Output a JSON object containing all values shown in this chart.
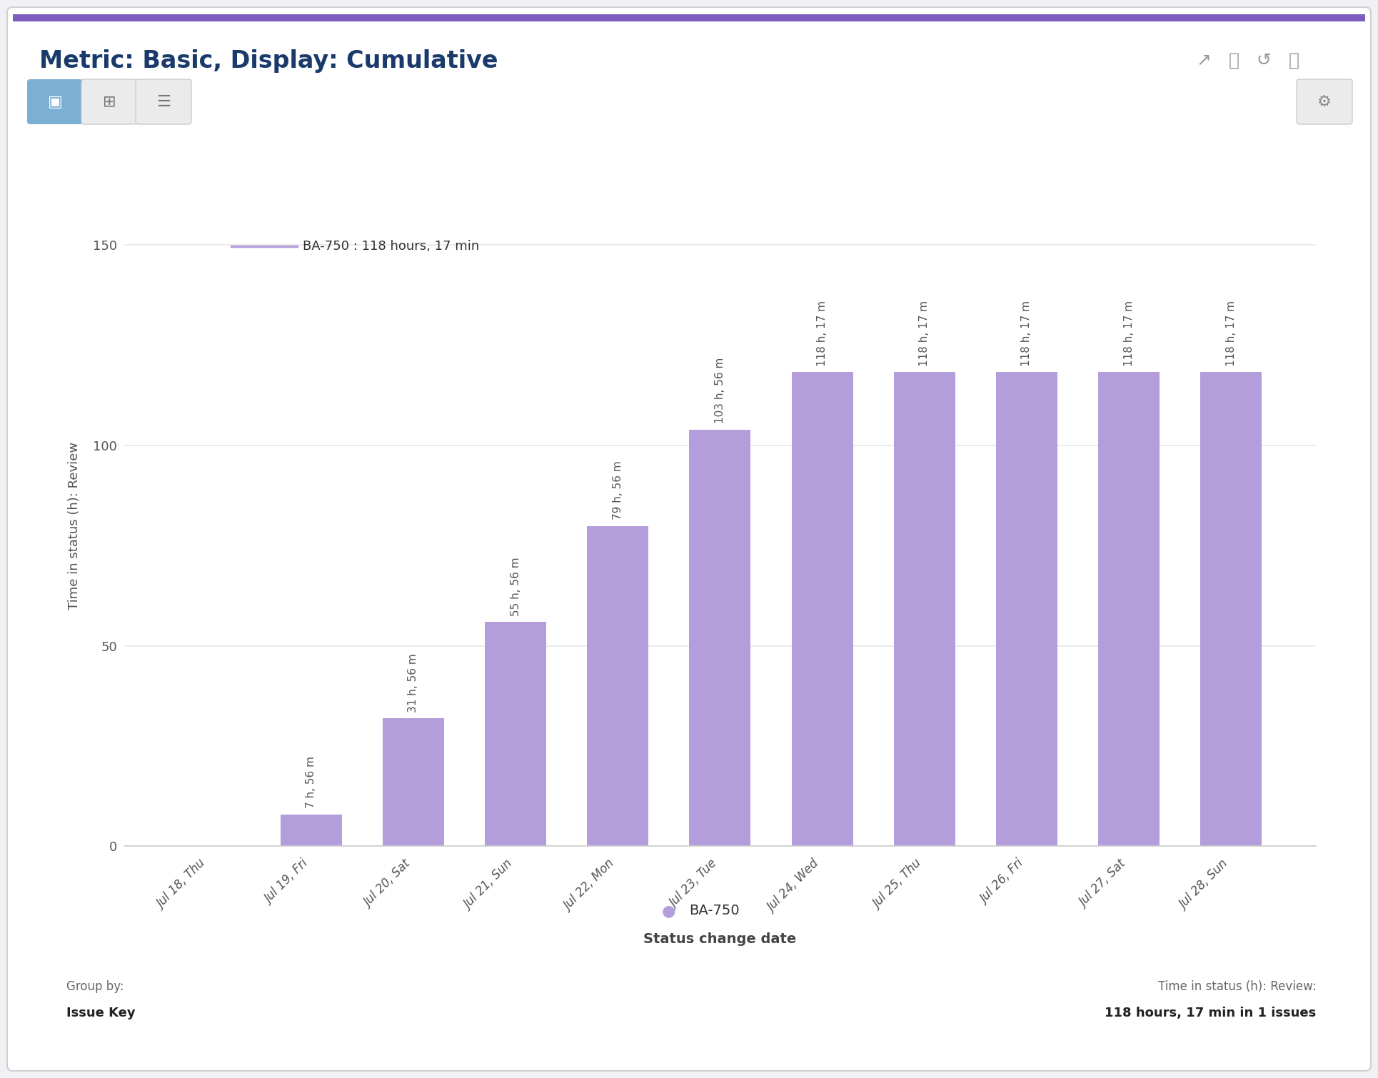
{
  "title": "Metric: Basic, Display: Cumulative",
  "title_color": "#1a3a6b",
  "title_fontsize": 24,
  "categories": [
    "Jul 18, Thu",
    "Jul 19, Fri",
    "Jul 20, Sat",
    "Jul 21, Sun",
    "Jul 22, Mon",
    "Jul 23, Tue",
    "Jul 24, Wed",
    "Jul 25, Thu",
    "Jul 26, Fri",
    "Jul 27, Sat",
    "Jul 28, Sun"
  ],
  "values": [
    0,
    7.933,
    31.933,
    55.933,
    79.933,
    103.933,
    118.283,
    118.283,
    118.283,
    118.283,
    118.283
  ],
  "bar_labels": [
    "",
    "7 h, 56 m",
    "31 h, 56 m",
    "55 h, 56 m",
    "79 h, 56 m",
    "103 h, 56 m",
    "118 h, 17 m",
    "118 h, 17 m",
    "118 h, 17 m",
    "118 h, 17 m",
    "118 h, 17 m"
  ],
  "bar_color": "#b39ddb",
  "ylabel": "Time in status (h): Review",
  "xlabel": "Status change date",
  "ylim": [
    0,
    160
  ],
  "yticks": [
    0,
    50,
    100,
    150
  ],
  "legend_line_label": "BA-750 : 118 hours, 17 min",
  "legend_dot_label": "BA-750",
  "legend_color": "#b39ddb",
  "group_by_label": "Group by:",
  "group_by_value": "Issue Key",
  "summary_label": "Time in status (h): Review:",
  "summary_value": "118 hours, 17 min in 1 issues",
  "background_color": "#ffffff",
  "border_color": "#d0d0d0",
  "grid_color": "#e8e8e8",
  "top_border_color": "#7c5cbf",
  "btn1_color": "#7bafd4",
  "btn_bg_color": "#ebebeb",
  "btn_border_color": "#cccccc",
  "ylabel_fontsize": 13,
  "xlabel_fontsize": 14,
  "tick_fontsize": 12,
  "bar_label_fontsize": 11,
  "legend_fontsize": 13
}
